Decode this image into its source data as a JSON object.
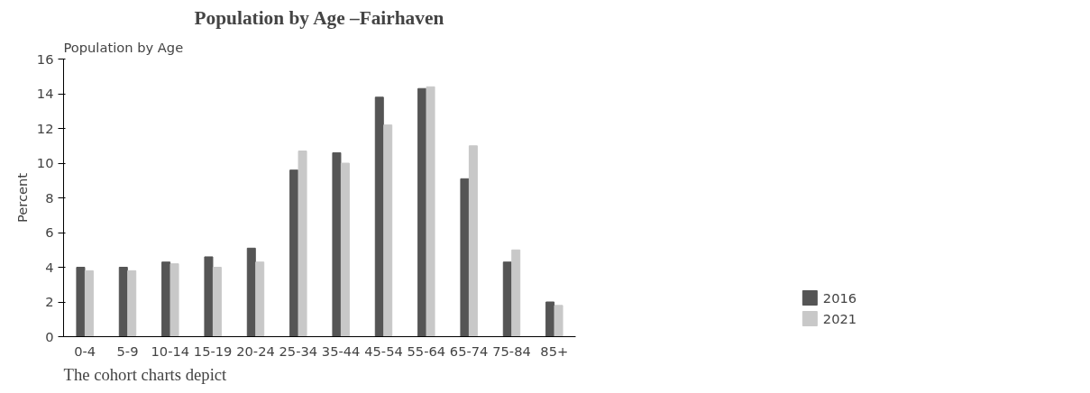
{
  "chart_data": {
    "type": "bar",
    "title": "Population by Age –Fairhaven",
    "subtitle": "Population by Age",
    "ylabel": "Percent",
    "categories": [
      "0-4",
      "5-9",
      "10-14",
      "15-19",
      "20-24",
      "25-34",
      "35-44",
      "45-54",
      "55-64",
      "65-74",
      "75-84",
      "85+"
    ],
    "series": [
      {
        "name": "2016",
        "color": "#555555",
        "values": [
          4.0,
          4.0,
          4.3,
          4.6,
          5.1,
          9.6,
          10.6,
          13.8,
          14.3,
          9.1,
          4.3,
          2.0
        ]
      },
      {
        "name": "2021",
        "color": "#c8c8c8",
        "values": [
          3.8,
          3.8,
          4.2,
          4.0,
          4.3,
          10.7,
          10.0,
          12.2,
          14.4,
          11.0,
          5.0,
          1.8
        ]
      }
    ],
    "ylim": [
      0,
      16
    ],
    "yticks": [
      0,
      2,
      4,
      6,
      8,
      10,
      12,
      14,
      16
    ],
    "grid": false,
    "legend": "bottom right",
    "annotations": [
      "The cohort charts depict"
    ]
  }
}
